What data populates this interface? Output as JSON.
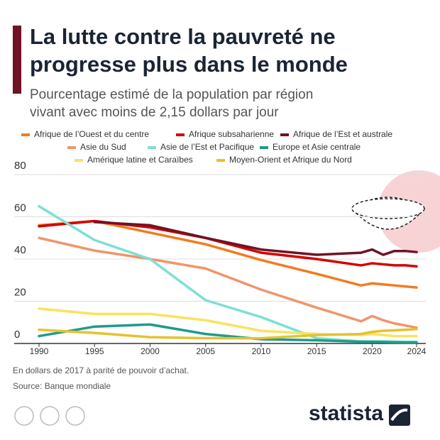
{
  "chart_data": {
    "type": "line",
    "title": "La lutte contre la pauvreté ne progresse plus dans le monde",
    "title_lines": [
      "La lutte contre la pauvreté ne",
      "progresse plus dans le monde"
    ],
    "subtitle_lines": [
      "Pourcentage estimé de la population par région",
      "vivant avec moins de 2,15 dollars par jour"
    ],
    "x": [
      1990,
      1995,
      2000,
      2005,
      2010,
      2015,
      2019,
      2020,
      2021,
      2022,
      2023,
      2024
    ],
    "xlim": [
      1990,
      2024
    ],
    "xticks": [
      1990,
      1995,
      2000,
      2005,
      2010,
      2015,
      2020,
      2024
    ],
    "ylim": [
      0,
      80
    ],
    "yticks": [
      0,
      20,
      40,
      60,
      80
    ],
    "grid": true,
    "series": [
      {
        "name": "Afrique de l’Ouest et du centre",
        "color": "#f47a20",
        "values": [
          56,
          58,
          52.5,
          47,
          39.5,
          33,
          27.5,
          28.5,
          28,
          27.5,
          27,
          26.5
        ]
      },
      {
        "name": "Afrique subsaharienne",
        "color": "#d40000",
        "values": [
          55.5,
          58,
          55,
          50,
          43,
          40,
          37,
          38,
          37.5,
          37,
          37,
          36.5
        ]
      },
      {
        "name": "Afrique de l’Est et australe",
        "color": "#6e1423",
        "values": [
          null,
          57.5,
          56,
          50,
          44.5,
          42,
          43,
          44.5,
          42,
          43.8,
          43.8,
          43.3
        ]
      },
      {
        "name": "Asie du Sud",
        "color": "#f0956a",
        "values": [
          50,
          44,
          40,
          35.5,
          25.5,
          17,
          10.5,
          13,
          11,
          9.5,
          8.5,
          7.5
        ]
      },
      {
        "name": "Asie de l’Est et Pacifique",
        "color": "#7ddfd5",
        "values": [
          65,
          49,
          40,
          20.5,
          12.5,
          2.5,
          1,
          1,
          1,
          0.9,
          0.8,
          0.8
        ]
      },
      {
        "name": "Europe et Asie centrale",
        "color": "#1f9b8a",
        "values": [
          3.5,
          8,
          9,
          4.5,
          2,
          1.5,
          0.8,
          0.8,
          0.7,
          0.6,
          0.5,
          0.5
        ]
      },
      {
        "name": "Amérique latine et Caraïbes",
        "color": "#f9e35f",
        "values": [
          16.5,
          14,
          14,
          11,
          6,
          4.5,
          4,
          4.5,
          4,
          3.5,
          3.5,
          3.5
        ]
      },
      {
        "name": "Moyen-Orient et Afrique du Nord",
        "color": "#e6c12f",
        "values": [
          6.5,
          5,
          3,
          2.5,
          2.5,
          4,
          4.5,
          5.5,
          6,
          6.2,
          6.5,
          6.8
        ]
      }
    ],
    "notes": [
      "En dollars de 2017 à parité de pouvoir d’achat.",
      "Source: Banque mondiale"
    ],
    "brand": "statista"
  }
}
